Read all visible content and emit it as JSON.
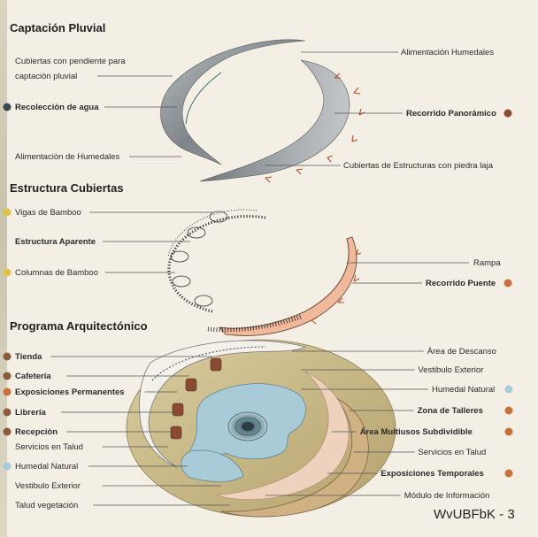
{
  "headings": {
    "captacion": "Captación Pluvial",
    "estructura": "Estructura Cubiertas",
    "programa": "Programa Arquitectónico"
  },
  "captacion": {
    "cubiertas_line1": "Cubiertas con pendiente para",
    "cubiertas_line2": "captaciòn pluvial",
    "recoleccion": "Recolecciòn de agua",
    "alimentacion_left": "Alimentaciòn de Humedales",
    "alimentacion_right": "Alimentación Humedales",
    "recorrido_panoramico": "Recorrido Panorámico",
    "cubiertas_piedra": "Cubiertas de Estructuras con piedra laja"
  },
  "estructura": {
    "vigas": "Vigas de Bamboo",
    "aparente": "Estructura Aparente",
    "columnas": "Columnas de Bamboo",
    "rampa": "Rampa",
    "recorrido_puente": "Recorrido Puente"
  },
  "programa": {
    "left": [
      {
        "text": "Tienda",
        "bold": true,
        "dot": "#8a5a3b"
      },
      {
        "text": "Cafetería",
        "bold": true,
        "dot": "#8a5a3b"
      },
      {
        "text": "Exposiciones Permanentes",
        "bold": true,
        "dot": "#c9713d"
      },
      {
        "text": "Librería",
        "bold": true,
        "dot": "#8a5a3b"
      },
      {
        "text": "Recepciòn",
        "bold": true,
        "dot": "#8a5a3b"
      },
      {
        "text": "Servicios en Talud",
        "bold": false,
        "dot": ""
      },
      {
        "text": "Humedal Natural",
        "bold": false,
        "dot": "#a9cbd8"
      },
      {
        "text": "Vestibulo Exterior",
        "bold": false,
        "dot": ""
      },
      {
        "text": "Talud vegetaciòn",
        "bold": false,
        "dot": ""
      }
    ],
    "right": [
      {
        "text": "Àrea de Descanso",
        "bold": false,
        "dot": ""
      },
      {
        "text": "Vestibulo Exterior",
        "bold": false,
        "dot": ""
      },
      {
        "text": "Humedal Natural",
        "bold": false,
        "dot": "#a9cbd8"
      },
      {
        "text": "Zona de Talleres",
        "bold": true,
        "dot": "#c9713d"
      },
      {
        "text": "Área Multiusos Subdividible",
        "bold": true,
        "dot": "#c9713d"
      },
      {
        "text": "Servicios en Talud",
        "bold": false,
        "dot": ""
      },
      {
        "text": "Exposiciones Temporales",
        "bold": true,
        "dot": "#c9713d"
      },
      {
        "text": "Módulo de Información",
        "bold": false,
        "dot": ""
      }
    ]
  },
  "footer": "WvUBFbK - 3",
  "colors": {
    "background": "#f3efe4",
    "dot_dark": "#3c4a52",
    "dot_yellow": "#e0c24a",
    "dot_brown": "#8a4b32",
    "dot_orange": "#c9713d",
    "roof_stone": "#8e9398",
    "ground": "#c9b98c",
    "water": "#a9cbd8"
  }
}
